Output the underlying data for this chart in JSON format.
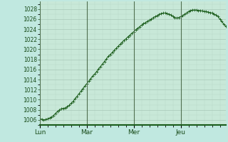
{
  "background_color": "#c0e8e0",
  "plot_bg_color": "#c8e8d8",
  "grid_color_major": "#a8c8b8",
  "grid_color_minor": "#b8d8c8",
  "line_color": "#1a5c1a",
  "ylim": [
    1005,
    1029.5
  ],
  "yticks": [
    1006,
    1008,
    1010,
    1012,
    1014,
    1016,
    1018,
    1020,
    1022,
    1024,
    1026,
    1028
  ],
  "day_labels": [
    "Lun",
    "Mar",
    "Mer",
    "Jeu"
  ],
  "day_positions": [
    0,
    24,
    48,
    72
  ],
  "total_hours": 96,
  "pressure_values": [
    1006.2,
    1006.1,
    1006.0,
    1006.1,
    1006.2,
    1006.4,
    1006.6,
    1006.9,
    1007.3,
    1007.7,
    1008.0,
    1008.2,
    1008.3,
    1008.4,
    1008.6,
    1008.9,
    1009.3,
    1009.7,
    1010.2,
    1010.7,
    1011.2,
    1011.7,
    1012.2,
    1012.7,
    1013.2,
    1013.7,
    1014.2,
    1014.7,
    1015.1,
    1015.6,
    1016.1,
    1016.6,
    1017.1,
    1017.6,
    1018.1,
    1018.6,
    1019.0,
    1019.4,
    1019.8,
    1020.2,
    1020.6,
    1021.0,
    1021.4,
    1021.8,
    1022.1,
    1022.5,
    1022.8,
    1023.2,
    1023.5,
    1023.9,
    1024.2,
    1024.5,
    1024.8,
    1025.1,
    1025.3,
    1025.6,
    1025.8,
    1026.0,
    1026.3,
    1026.5,
    1026.7,
    1026.9,
    1027.1,
    1027.2,
    1027.2,
    1027.1,
    1027.0,
    1026.8,
    1026.5,
    1026.3,
    1026.2,
    1026.3,
    1026.5,
    1026.7,
    1027.0,
    1027.2,
    1027.5,
    1027.7,
    1027.8,
    1027.8,
    1027.8,
    1027.7,
    1027.7,
    1027.6,
    1027.5,
    1027.5,
    1027.4,
    1027.3,
    1027.2,
    1027.0,
    1026.8,
    1026.5,
    1026.0,
    1025.5,
    1025.0,
    1024.6,
    1024.3,
    1024.1,
    1024.0,
    1024.2
  ]
}
